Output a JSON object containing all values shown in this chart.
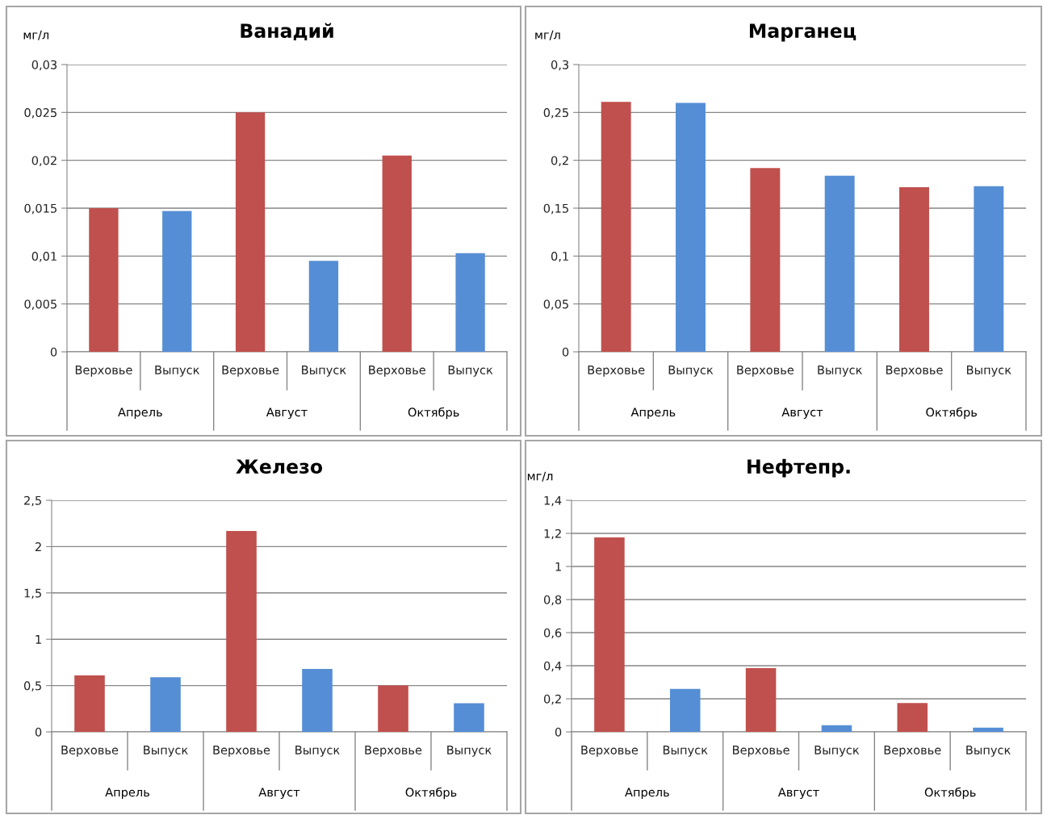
{
  "chart_data": [
    {
      "type": "bar",
      "title": "Ванадий",
      "ylabel": "мг/л",
      "categories": [
        "Верховье",
        "Выпуск",
        "Верховье",
        "Выпуск",
        "Верховье",
        "Выпуск"
      ],
      "annotations": [
        "Апрель",
        "Август",
        "Октябрь"
      ],
      "values": [
        0.015,
        0.0147,
        0.025,
        0.0095,
        0.0205,
        0.0103
      ],
      "colors": [
        "#c0504d",
        "#558ed5",
        "#c0504d",
        "#558ed5",
        "#c0504d",
        "#558ed5"
      ],
      "ylim": [
        0,
        0.03
      ],
      "yticks": [
        0,
        {
          "value": 0.005,
          "label": "0,005"
        },
        {
          "value": 0.01,
          "label": "0,01"
        },
        {
          "value": 0.015,
          "label": "0,015"
        },
        {
          "value": 0.02,
          "label": "0,02"
        },
        {
          "value": 0.025,
          "label": "0,025"
        },
        {
          "value": 0.03,
          "label": "0,03"
        }
      ],
      "grid": "y"
    },
    {
      "type": "bar",
      "title": "Марганец",
      "ylabel": "мг/л",
      "categories": [
        "Верховье",
        "Выпуск",
        "Верховье",
        "Выпуск",
        "Верховье",
        "Выпуск"
      ],
      "annotations": [
        "Апрель",
        "Август",
        "Октябрь"
      ],
      "values": [
        0.261,
        0.26,
        0.192,
        0.184,
        0.172,
        0.173
      ],
      "colors": [
        "#c0504d",
        "#558ed5",
        "#c0504d",
        "#558ed5",
        "#c0504d",
        "#558ed5"
      ],
      "ylim": [
        0,
        0.3
      ],
      "yticks": [
        0,
        {
          "value": 0.05,
          "label": "0,05"
        },
        {
          "value": 0.1,
          "label": "0,1"
        },
        {
          "value": 0.15,
          "label": "0,15"
        },
        {
          "value": 0.2,
          "label": "0,2"
        },
        {
          "value": 0.25,
          "label": "0,25"
        },
        {
          "value": 0.3,
          "label": "0,3"
        }
      ],
      "grid": "y"
    },
    {
      "type": "bar",
      "title": "Железо",
      "categories": [
        "Верховье",
        "Выпуск",
        "Верховье",
        "Выпуск",
        "Верховье",
        "Выпуск"
      ],
      "annotations": [
        "Апрель",
        "Август",
        "Октябрь"
      ],
      "values": [
        0.61,
        0.59,
        2.17,
        0.68,
        0.5,
        0.31
      ],
      "colors": [
        "#c0504d",
        "#558ed5",
        "#c0504d",
        "#558ed5",
        "#c0504d",
        "#558ed5"
      ],
      "ylim": [
        0,
        2.5
      ],
      "yticks": [
        0,
        {
          "value": 0.5,
          "label": "0,5"
        },
        1,
        {
          "value": 1.5,
          "label": "1,5"
        },
        2,
        {
          "value": 2.5,
          "label": "2,5"
        }
      ],
      "grid": "y"
    },
    {
      "type": "bar",
      "title": "Нефтепр.",
      "ylabel": "мг/л",
      "categories": [
        "Верховье",
        "Выпуск",
        "Верховье",
        "Выпуск",
        "Верховье",
        "Выпуск"
      ],
      "annotations": [
        "Апрель",
        "Август",
        "Октябрь"
      ],
      "values": [
        1.175,
        0.26,
        0.385,
        0.04,
        0.175,
        0.025
      ],
      "colors": [
        "#c0504d",
        "#558ed5",
        "#c0504d",
        "#558ed5",
        "#c0504d",
        "#558ed5"
      ],
      "ylim": [
        0,
        1.4
      ],
      "yticks": [
        0,
        {
          "value": 0.2,
          "label": "0,2"
        },
        {
          "value": 0.4,
          "label": "0,4"
        },
        {
          "value": 0.6,
          "label": "0,6"
        },
        {
          "value": 0.8,
          "label": "0,8"
        },
        1,
        {
          "value": 1.2,
          "label": "1,2"
        },
        {
          "value": 1.4,
          "label": "1,4"
        }
      ],
      "grid": "y"
    }
  ]
}
